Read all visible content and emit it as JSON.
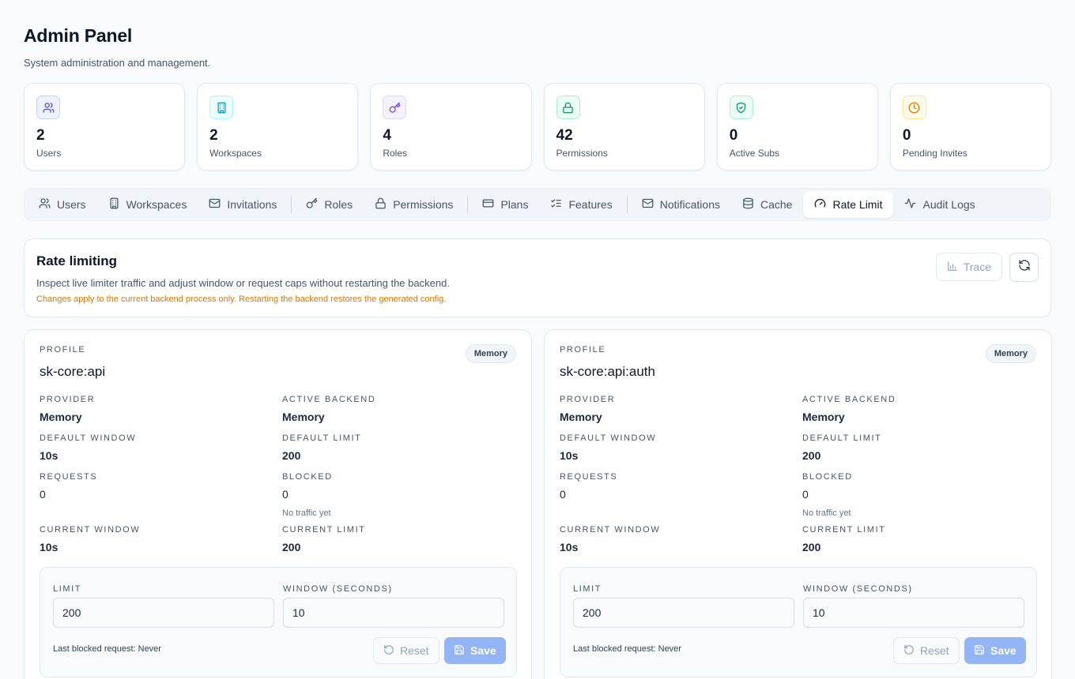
{
  "header": {
    "title": "Admin Panel",
    "subtitle": "System administration and management."
  },
  "stats": [
    {
      "value": "2",
      "label": "Users",
      "icon": "users-icon",
      "color": "#4f6ef7",
      "bg": "#eef2ff",
      "border": "#c7d2fe"
    },
    {
      "value": "2",
      "label": "Workspaces",
      "icon": "building-icon",
      "color": "#0891b2",
      "bg": "#ecfeff",
      "border": "#a5f3fc"
    },
    {
      "value": "4",
      "label": "Roles",
      "icon": "key-icon",
      "color": "#7c3aed",
      "bg": "#f5f3ff",
      "border": "#ddd6fe"
    },
    {
      "value": "42",
      "label": "Permissions",
      "icon": "lock-icon",
      "color": "#059669",
      "bg": "#ecfdf5",
      "border": "#a7f3d0"
    },
    {
      "value": "0",
      "label": "Active Subs",
      "icon": "shield-check-icon",
      "color": "#059669",
      "bg": "#ecfdf5",
      "border": "#a7f3d0"
    },
    {
      "value": "0",
      "label": "Pending Invites",
      "icon": "clock-icon",
      "color": "#d97706",
      "bg": "#fffbeb",
      "border": "#fde68a"
    }
  ],
  "tabs": [
    {
      "label": "Users",
      "icon": "users-icon"
    },
    {
      "label": "Workspaces",
      "icon": "building-icon"
    },
    {
      "label": "Invitations",
      "icon": "mail-icon"
    },
    {
      "label": "Roles",
      "icon": "key-icon"
    },
    {
      "label": "Permissions",
      "icon": "lock-icon"
    },
    {
      "label": "Plans",
      "icon": "credit-card-icon"
    },
    {
      "label": "Features",
      "icon": "list-checks-icon"
    },
    {
      "label": "Notifications",
      "icon": "mail-icon"
    },
    {
      "label": "Cache",
      "icon": "database-icon"
    },
    {
      "label": "Rate Limit",
      "icon": "gauge-icon",
      "active": true
    },
    {
      "label": "Audit Logs",
      "icon": "activity-icon"
    }
  ],
  "rate_limiting": {
    "title": "Rate limiting",
    "description": "Inspect live limiter traffic and adjust window or request caps without restarting the backend.",
    "warning": "Changes apply to the current backend process only. Restarting the backend restores the generated config.",
    "trace_label": "Trace"
  },
  "labels": {
    "profile": "Profile",
    "provider": "Provider",
    "active_backend": "Active Backend",
    "default_window": "Default Window",
    "default_limit": "Default Limit",
    "requests": "Requests",
    "blocked": "Blocked",
    "current_window": "Current Window",
    "current_limit": "Current Limit",
    "limit": "Limit",
    "window_seconds": "Window (Seconds)",
    "reset": "Reset",
    "save": "Save"
  },
  "profiles": [
    {
      "name": "sk-core:api",
      "badge": "Memory",
      "provider": "Memory",
      "active_backend": "Memory",
      "default_window": "10s",
      "default_limit": "200",
      "requests": "0",
      "blocked": "0",
      "blocked_hint": "No traffic yet",
      "current_window": "10s",
      "current_limit": "200",
      "limit_value": "200",
      "window_value": "10",
      "last_blocked": "Last blocked request: Never"
    },
    {
      "name": "sk-core:api:auth",
      "badge": "Memory",
      "provider": "Memory",
      "active_backend": "Memory",
      "default_window": "10s",
      "default_limit": "200",
      "requests": "0",
      "blocked": "0",
      "blocked_hint": "No traffic yet",
      "current_window": "10s",
      "current_limit": "200",
      "limit_value": "200",
      "window_value": "10",
      "last_blocked": "Last blocked request: Never"
    }
  ]
}
